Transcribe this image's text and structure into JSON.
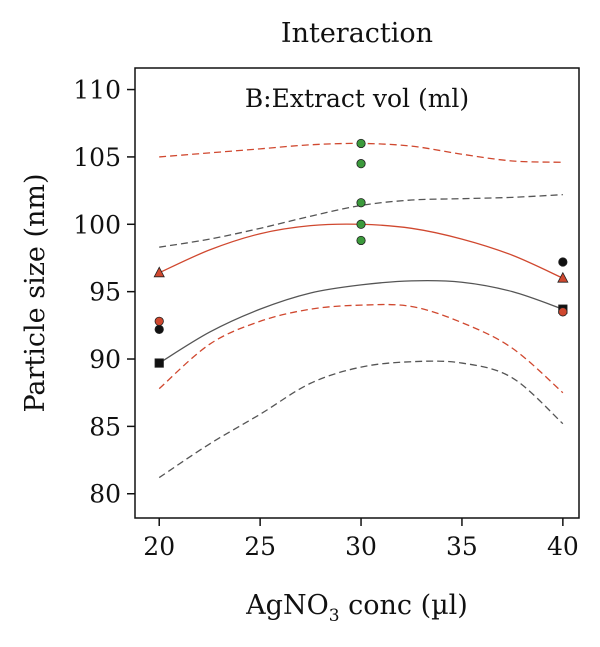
{
  "chart_data": {
    "type": "scatter",
    "title": "Interaction",
    "subtitle": "B:Extract vol (ml)",
    "xlabel_main": "AgNO",
    "xlabel_sub": "3",
    "xlabel_tail": " conc (µl)",
    "ylabel": "Particle size (nm)",
    "xlim": [
      18.8,
      40.8
    ],
    "ylim": [
      78.2,
      111.6
    ],
    "x_ticks": [
      20,
      25,
      30,
      35,
      40
    ],
    "x_tick_labels": [
      "20",
      "25",
      "30",
      "35",
      "40"
    ],
    "y_ticks": [
      80,
      85,
      90,
      95,
      100,
      105,
      110
    ],
    "y_tick_labels": [
      "80",
      "85",
      "90",
      "95",
      "100",
      "105",
      "110"
    ],
    "grid": false,
    "colors": {
      "red": "#d0482f",
      "gray": "#555555",
      "green": "#3c9a3c",
      "black": "#111111"
    },
    "series": [
      {
        "kind": "line",
        "style": "solid",
        "color": "red",
        "x": [
          20,
          22.5,
          25,
          27.5,
          30,
          32.5,
          35,
          37.5,
          40
        ],
        "y": [
          96.4,
          98.1,
          99.3,
          99.9,
          100.0,
          99.7,
          98.9,
          97.7,
          96.0
        ]
      },
      {
        "kind": "line",
        "style": "dashed",
        "color": "red",
        "x": [
          20,
          22.5,
          25,
          27.5,
          30,
          32.5,
          35,
          37.5,
          40
        ],
        "y": [
          105.0,
          105.3,
          105.6,
          105.9,
          106.0,
          105.8,
          105.2,
          104.7,
          104.6
        ]
      },
      {
        "kind": "line",
        "style": "dashed",
        "color": "red",
        "x": [
          20,
          22.5,
          25,
          27.5,
          30,
          32.5,
          35,
          37.5,
          40
        ],
        "y": [
          87.8,
          91.1,
          92.8,
          93.7,
          94.0,
          93.9,
          92.7,
          90.8,
          87.5
        ]
      },
      {
        "kind": "line",
        "style": "solid",
        "color": "gray",
        "x": [
          20,
          22.5,
          25,
          27.5,
          30,
          32.5,
          35,
          37.5,
          40
        ],
        "y": [
          89.7,
          92.0,
          93.7,
          94.9,
          95.5,
          95.8,
          95.7,
          95.0,
          93.7
        ]
      },
      {
        "kind": "line",
        "style": "dashed",
        "color": "gray",
        "x": [
          20,
          22.5,
          25,
          27.5,
          30,
          32.5,
          35,
          37.5,
          40
        ],
        "y": [
          98.3,
          98.9,
          99.7,
          100.6,
          101.4,
          101.8,
          101.9,
          102.0,
          102.2
        ]
      },
      {
        "kind": "line",
        "style": "dashed",
        "color": "gray",
        "x": [
          20,
          22.5,
          25,
          27.5,
          30,
          32.5,
          35,
          37.5,
          40
        ],
        "y": [
          81.2,
          83.7,
          85.9,
          88.2,
          89.4,
          89.8,
          89.7,
          88.6,
          85.2
        ]
      },
      {
        "kind": "points",
        "marker": "circle",
        "color": "green",
        "x": [
          30,
          30,
          30,
          30,
          30
        ],
        "y": [
          106.0,
          104.5,
          101.6,
          100.0,
          98.8
        ]
      },
      {
        "kind": "points",
        "marker": "triangle",
        "color": "red",
        "x": [
          20,
          40
        ],
        "y": [
          96.4,
          96.0
        ]
      },
      {
        "kind": "points",
        "marker": "square",
        "color": "black",
        "x": [
          20,
          40
        ],
        "y": [
          89.7,
          93.7
        ]
      },
      {
        "kind": "points",
        "marker": "circle",
        "color": "black",
        "x": [
          20,
          40
        ],
        "y": [
          92.2,
          97.2
        ]
      },
      {
        "kind": "points",
        "marker": "circle",
        "color": "red",
        "x": [
          20,
          40
        ],
        "y": [
          92.8,
          93.5
        ]
      }
    ]
  }
}
